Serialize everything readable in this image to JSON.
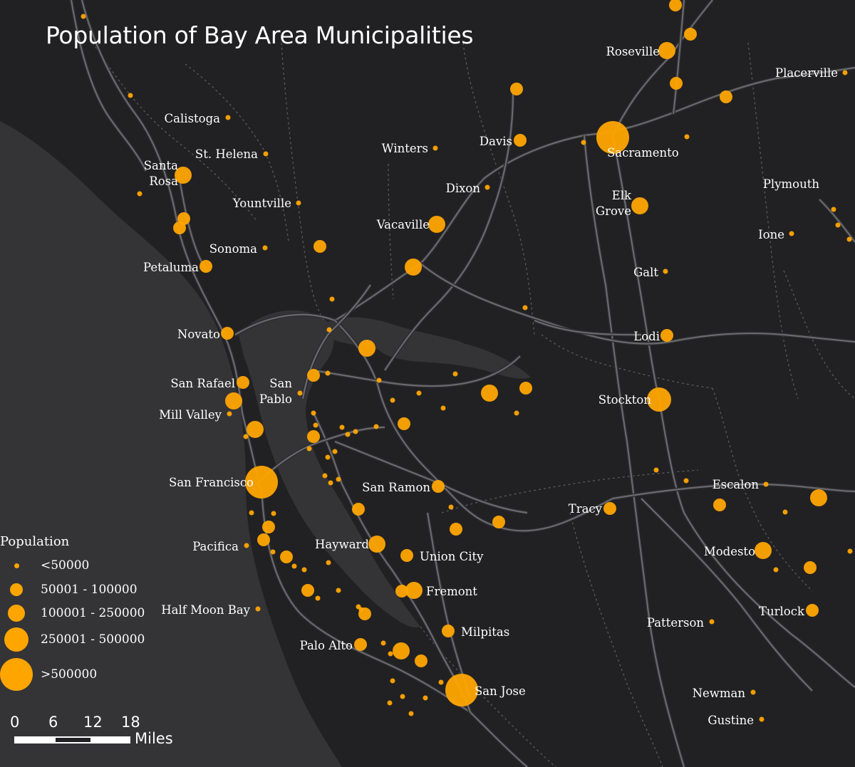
{
  "title": "Population of Bay Area Municipalities",
  "colors": {
    "background": "#212123",
    "water": "#343437",
    "road": "#6a6a6e",
    "road_minor": "#4a4a4e",
    "boundary": "#5a5a5e",
    "symbol": "#ffa500"
  },
  "legend": {
    "title": "Population",
    "classes": [
      {
        "label": "<50000"
      },
      {
        "label": "50001 - 100000"
      },
      {
        "label": "100001 - 250000"
      },
      {
        "label": "250001 - 500000"
      },
      {
        "label": ">500000"
      }
    ]
  },
  "scale_bar": {
    "ticks": [
      "0",
      "6",
      "12",
      "18"
    ],
    "unit": "Miles"
  },
  "cities": [
    {
      "name": "Roseville",
      "lines": [
        "Roseville"
      ],
      "size_class": 2
    },
    {
      "name": "Placerville",
      "lines": [
        "Placerville"
      ],
      "size_class": 0
    },
    {
      "name": "Calistoga",
      "lines": [
        "Calistoga"
      ],
      "size_class": 0
    },
    {
      "name": "St. Helena",
      "lines": [
        "St. Helena"
      ],
      "size_class": 0
    },
    {
      "name": "Santa Rosa",
      "lines": [
        "Santa",
        "Rosa"
      ],
      "size_class": 2
    },
    {
      "name": "Winters",
      "lines": [
        "Winters"
      ],
      "size_class": 0
    },
    {
      "name": "Davis",
      "lines": [
        "Davis"
      ],
      "size_class": 1
    },
    {
      "name": "Sacramento",
      "lines": [
        "Sacramento"
      ],
      "size_class": 4
    },
    {
      "name": "Dixon",
      "lines": [
        "Dixon"
      ],
      "size_class": 0
    },
    {
      "name": "Plymouth",
      "lines": [
        "Plymouth"
      ],
      "size_class": 0
    },
    {
      "name": "Elk Grove",
      "lines": [
        "Elk",
        "Grove"
      ],
      "size_class": 2
    },
    {
      "name": "Yountville",
      "lines": [
        "Yountville"
      ],
      "size_class": 0
    },
    {
      "name": "Vacaville",
      "lines": [
        "Vacaville"
      ],
      "size_class": 2
    },
    {
      "name": "Ione",
      "lines": [
        "Ione"
      ],
      "size_class": 0
    },
    {
      "name": "Sonoma",
      "lines": [
        "Sonoma"
      ],
      "size_class": 0
    },
    {
      "name": "Petaluma",
      "lines": [
        "Petaluma"
      ],
      "size_class": 1
    },
    {
      "name": "Galt",
      "lines": [
        "Galt"
      ],
      "size_class": 0
    },
    {
      "name": "Novato",
      "lines": [
        "Novato"
      ],
      "size_class": 1
    },
    {
      "name": "Lodi",
      "lines": [
        "Lodi"
      ],
      "size_class": 1
    },
    {
      "name": "San Rafael",
      "lines": [
        "San Rafael"
      ],
      "size_class": 1
    },
    {
      "name": "San Pablo",
      "lines": [
        "San",
        "Pablo"
      ],
      "size_class": 0
    },
    {
      "name": "Stockton",
      "lines": [
        "Stockton"
      ],
      "size_class": 3
    },
    {
      "name": "Mill Valley",
      "lines": [
        "Mill Valley"
      ],
      "size_class": 0
    },
    {
      "name": "San Francisco",
      "lines": [
        "San Francisco"
      ],
      "size_class": 4
    },
    {
      "name": "San Ramon",
      "lines": [
        "San Ramon"
      ],
      "size_class": 1
    },
    {
      "name": "Escalon",
      "lines": [
        "Escalon"
      ],
      "size_class": 0
    },
    {
      "name": "Tracy",
      "lines": [
        "Tracy"
      ],
      "size_class": 1
    },
    {
      "name": "Pacifica",
      "lines": [
        "Pacifica"
      ],
      "size_class": 0
    },
    {
      "name": "Hayward",
      "lines": [
        "Hayward"
      ],
      "size_class": 2
    },
    {
      "name": "Union City",
      "lines": [
        "Union City"
      ],
      "size_class": 1
    },
    {
      "name": "Modesto",
      "lines": [
        "Modesto"
      ],
      "size_class": 2
    },
    {
      "name": "Fremont",
      "lines": [
        "Fremont"
      ],
      "size_class": 2
    },
    {
      "name": "Half Moon Bay",
      "lines": [
        "Half Moon Bay"
      ],
      "size_class": 0
    },
    {
      "name": "Turlock",
      "lines": [
        "Turlock"
      ],
      "size_class": 1
    },
    {
      "name": "Patterson",
      "lines": [
        "Patterson"
      ],
      "size_class": 0
    },
    {
      "name": "Milpitas",
      "lines": [
        "Milpitas"
      ],
      "size_class": 1
    },
    {
      "name": "Palo Alto",
      "lines": [
        "Palo Alto"
      ],
      "size_class": 1
    },
    {
      "name": "San Jose",
      "lines": [
        "San Jose"
      ],
      "size_class": 4
    },
    {
      "name": "Newman",
      "lines": [
        "Newman"
      ],
      "size_class": 0
    },
    {
      "name": "Gustine",
      "lines": [
        "Gustine"
      ],
      "size_class": 0
    }
  ],
  "unlabeled_place_classes": [
    0,
    0,
    1,
    1,
    1,
    1,
    1,
    0,
    0,
    1,
    0,
    1,
    1,
    0,
    0,
    0,
    0,
    2,
    0,
    2,
    1,
    0,
    0,
    0,
    0,
    0,
    0,
    2,
    1,
    0,
    2,
    1,
    0,
    0,
    0,
    0,
    0,
    2,
    1,
    0,
    0,
    0,
    0,
    0,
    0,
    0,
    0,
    1,
    0,
    2,
    1,
    0,
    1,
    0,
    0,
    1,
    1,
    1,
    0,
    1,
    0,
    1,
    0,
    0,
    0,
    0,
    1,
    0,
    1,
    0,
    0,
    1,
    2,
    1,
    0,
    0,
    0,
    0,
    0,
    0,
    0,
    0,
    0,
    0,
    0
  ]
}
